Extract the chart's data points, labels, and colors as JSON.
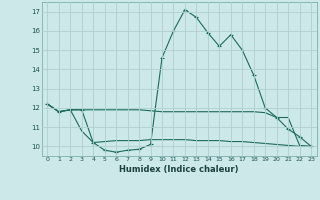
{
  "xlabel": "Humidex (Indice chaleur)",
  "x_values": [
    0,
    1,
    2,
    3,
    4,
    5,
    6,
    7,
    8,
    9,
    10,
    11,
    12,
    13,
    14,
    15,
    16,
    17,
    18,
    19,
    20,
    21,
    22,
    23
  ],
  "line1": [
    12.2,
    11.8,
    11.9,
    11.9,
    10.2,
    9.8,
    9.7,
    9.8,
    9.85,
    10.1,
    14.6,
    16.0,
    17.1,
    16.7,
    15.9,
    15.2,
    15.8,
    15.0,
    13.7,
    12.0,
    11.5,
    10.9,
    10.5,
    10.0
  ],
  "line2": [
    12.2,
    11.8,
    11.9,
    11.9,
    11.9,
    11.9,
    11.9,
    11.9,
    11.9,
    11.85,
    11.8,
    11.8,
    11.8,
    11.8,
    11.8,
    11.8,
    11.8,
    11.8,
    11.8,
    11.75,
    11.5,
    11.5,
    10.05,
    10.0
  ],
  "line3": [
    12.2,
    11.8,
    11.9,
    10.8,
    10.2,
    10.25,
    10.3,
    10.3,
    10.3,
    10.35,
    10.35,
    10.35,
    10.35,
    10.3,
    10.3,
    10.3,
    10.25,
    10.25,
    10.2,
    10.15,
    10.1,
    10.05,
    10.0,
    10.0
  ],
  "line_color": "#1a6b5e",
  "background_color": "#cde8e8",
  "grid_color": "#aed0d0",
  "ylim": [
    9.5,
    17.5
  ],
  "xlim": [
    -0.5,
    23.5
  ],
  "yticks": [
    10,
    11,
    12,
    13,
    14,
    15,
    16,
    17
  ],
  "xticks": [
    0,
    1,
    2,
    3,
    4,
    5,
    6,
    7,
    8,
    9,
    10,
    11,
    12,
    13,
    14,
    15,
    16,
    17,
    18,
    19,
    20,
    21,
    22,
    23
  ]
}
